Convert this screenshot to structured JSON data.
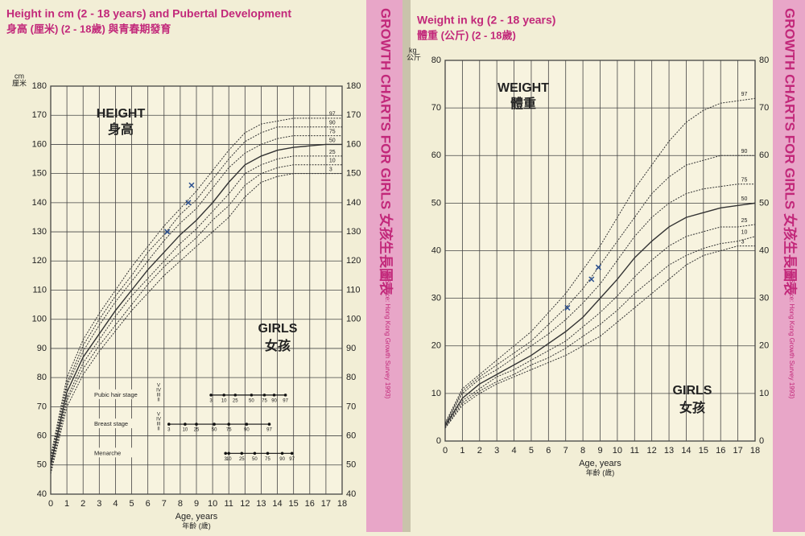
{
  "chart_data": [
    {
      "type": "line",
      "title": "Height in cm (2 - 18 years) and Pubertal Development",
      "subtitle": "身高 (厘米) (2 - 18歲) 與青春期發育",
      "band_title": "GROWTH CHARTS FOR GIRLS 女孩生長圖表",
      "band_source": "(Source: Hong Kong Growth Survey 1993)",
      "y_label": "cm",
      "y_label_zh": "厘米",
      "x_label": "Age, years",
      "x_label_zh": "年齡 (歲)",
      "annotations": [
        "HEIGHT",
        "身高",
        "GIRLS",
        "女孩"
      ],
      "x": [
        0,
        1,
        2,
        3,
        4,
        5,
        6,
        7,
        8,
        9,
        10,
        11,
        12,
        13,
        14,
        15,
        16,
        17,
        18
      ],
      "xlim": [
        0,
        18
      ],
      "xticks": [
        0,
        1,
        2,
        3,
        4,
        5,
        6,
        7,
        8,
        9,
        10,
        11,
        12,
        13,
        14,
        15,
        16,
        17,
        18
      ],
      "ylim": [
        40,
        180
      ],
      "yticks": [
        40,
        50,
        60,
        70,
        80,
        90,
        100,
        110,
        120,
        130,
        140,
        150,
        160,
        170,
        180
      ],
      "grid": true,
      "series": [
        {
          "name": "97",
          "color": "#333",
          "values": [
            53,
            80,
            93,
            102,
            110,
            118,
            125,
            132,
            138,
            144,
            151,
            158,
            164,
            167,
            168,
            169,
            169,
            169,
            169
          ]
        },
        {
          "name": "90",
          "color": "#333",
          "values": [
            52,
            78,
            91,
            100,
            108,
            115,
            123,
            129,
            136,
            141,
            148,
            155,
            161,
            164,
            166,
            166,
            166,
            166,
            166
          ]
        },
        {
          "name": "75",
          "color": "#333",
          "values": [
            51,
            77,
            89,
            98,
            106,
            113,
            120,
            127,
            133,
            138,
            145,
            152,
            157,
            160,
            162,
            163,
            163,
            163,
            163
          ]
        },
        {
          "name": "50",
          "color": "#333",
          "values": [
            50,
            75,
            87,
            95,
            103,
            110,
            117,
            123,
            129,
            134,
            140,
            147,
            153,
            156,
            158,
            159,
            159.5,
            160,
            160
          ]
        },
        {
          "name": "25",
          "color": "#333",
          "values": [
            49,
            73,
            85,
            93,
            101,
            108,
            114,
            120,
            126,
            131,
            137,
            143,
            150,
            153,
            155,
            156,
            156,
            156,
            156
          ]
        },
        {
          "name": "10",
          "color": "#333",
          "values": [
            48,
            72,
            83,
            91,
            98,
            105,
            112,
            118,
            123,
            128,
            134,
            139,
            146,
            150,
            152,
            153,
            153,
            153,
            153
          ]
        },
        {
          "name": "3",
          "color": "#333",
          "values": [
            47,
            70,
            81,
            89,
            96,
            103,
            109,
            115,
            120,
            125,
            130,
            135,
            142,
            147,
            149,
            150,
            150,
            150,
            150
          ]
        }
      ],
      "measurements": {
        "color": "#2a4f8f",
        "x": [
          7.2,
          8.5,
          8.7
        ],
        "values": [
          130,
          140,
          146
        ]
      },
      "puberty": {
        "percentiles": [
          3,
          10,
          25,
          50,
          75,
          90,
          97
        ],
        "stages": [
          "V",
          "IV",
          "III",
          "II"
        ],
        "rows": [
          {
            "label": "Pubic hair stage",
            "ages": [
              9.9,
              10.7,
              11.4,
              12.4,
              13.2,
              13.8,
              14.5
            ]
          },
          {
            "label": "Breast stage",
            "ages": [
              7.3,
              8.3,
              9.0,
              10.1,
              11.0,
              12.1,
              13.5
            ]
          },
          {
            "label": "Menarche",
            "ages": [
              10.8,
              11.0,
              11.8,
              12.6,
              13.4,
              14.3,
              14.9
            ]
          }
        ]
      }
    },
    {
      "type": "line",
      "title": "Weight in kg (2 - 18 years)",
      "subtitle": "體重 (公斤) (2 - 18歲)",
      "band_title": "GROWTH CHARTS FOR GIRLS 女孩生長圖表",
      "band_source": "(Source: Hong Kong Growth Survey 1993)",
      "y_label": "kg",
      "y_label_zh": "公斤",
      "x_label": "Age, years",
      "x_label_zh": "年齡 (歲)",
      "annotations": [
        "WEIGHT",
        "體重",
        "GIRLS",
        "女孩"
      ],
      "x": [
        0,
        1,
        2,
        3,
        4,
        5,
        6,
        7,
        8,
        9,
        10,
        11,
        12,
        13,
        14,
        15,
        16,
        17,
        18
      ],
      "xlim": [
        0,
        18
      ],
      "xticks": [
        0,
        1,
        2,
        3,
        4,
        5,
        6,
        7,
        8,
        9,
        10,
        11,
        12,
        13,
        14,
        15,
        16,
        17,
        18
      ],
      "ylim": [
        0,
        80
      ],
      "yticks": [
        0,
        10,
        20,
        30,
        40,
        50,
        60,
        70,
        80
      ],
      "grid": true,
      "series": [
        {
          "name": "97",
          "color": "#333",
          "values": [
            3.8,
            11,
            14,
            17,
            20,
            23,
            27,
            31,
            36,
            41,
            47,
            53,
            58,
            63,
            67,
            69.5,
            71,
            71.5,
            72
          ]
        },
        {
          "name": "90",
          "color": "#333",
          "values": [
            3.6,
            10.5,
            13.5,
            16,
            18.5,
            21,
            24.5,
            28,
            32,
            37,
            42,
            47,
            52,
            55.5,
            58,
            59,
            60,
            60,
            60
          ]
        },
        {
          "name": "75",
          "color": "#333",
          "values": [
            3.4,
            10,
            13,
            15,
            17.5,
            20,
            22.5,
            25.5,
            29,
            33,
            38,
            43,
            47,
            50,
            52,
            53,
            53.5,
            54,
            54
          ]
        },
        {
          "name": "50",
          "color": "#333",
          "values": [
            3.2,
            9,
            12,
            14,
            16,
            18,
            20.5,
            23,
            26,
            30,
            34,
            38.5,
            42,
            45,
            47,
            48,
            49,
            49.5,
            50
          ]
        },
        {
          "name": "25",
          "color": "#333",
          "values": [
            3,
            8.5,
            11,
            13.5,
            15,
            17,
            19,
            21,
            24,
            27,
            30.5,
            34.5,
            38,
            41,
            43,
            44,
            45,
            45,
            45.5
          ]
        },
        {
          "name": "10",
          "color": "#333",
          "values": [
            2.8,
            8,
            10.5,
            12.5,
            14,
            16,
            17.5,
            19.5,
            22,
            24.5,
            27.5,
            31,
            34,
            37,
            39,
            40.5,
            41.5,
            42,
            43
          ]
        },
        {
          "name": "3",
          "color": "#333",
          "values": [
            2.7,
            7.5,
            10,
            12,
            13.5,
            15,
            16.5,
            18,
            20,
            22,
            25,
            28,
            31,
            34,
            37,
            39,
            40,
            41,
            41
          ]
        }
      ],
      "measurements": {
        "color": "#2a4f8f",
        "x": [
          7.1,
          8.5,
          8.9
        ],
        "values": [
          28,
          34,
          36.5
        ]
      }
    }
  ]
}
